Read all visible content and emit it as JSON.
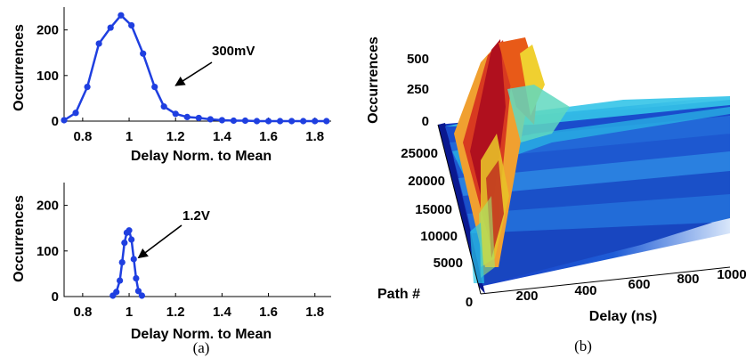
{
  "chart_data": [
    {
      "type": "line",
      "panel": "top-left",
      "xlabel": "Delay Norm. to Mean",
      "ylabel": "Occurrences",
      "xlim": [
        0.72,
        1.87
      ],
      "ylim": [
        0,
        250
      ],
      "xticks": [
        "0.8",
        "1",
        "1.2",
        "1.4",
        "1.6",
        "1.8"
      ],
      "xtick_values": [
        0.8,
        1.0,
        1.2,
        1.4,
        1.6,
        1.8
      ],
      "yticks": [
        "0",
        "100",
        "200"
      ],
      "ytick_values": [
        0,
        100,
        200
      ],
      "annotation": "300mV",
      "annotation_target": [
        1.2,
        78
      ],
      "color": "#1f3fe0",
      "x": [
        0.72,
        0.77,
        0.82,
        0.87,
        0.92,
        0.965,
        1.01,
        1.06,
        1.11,
        1.15,
        1.2,
        1.25,
        1.3,
        1.35,
        1.4,
        1.45,
        1.5,
        1.55,
        1.6,
        1.65,
        1.7,
        1.75,
        1.8,
        1.85
      ],
      "y": [
        2,
        18,
        75,
        170,
        205,
        232,
        210,
        148,
        75,
        32,
        16,
        9,
        7,
        4,
        2,
        1,
        1,
        0,
        0,
        0,
        0,
        0,
        0,
        0
      ]
    },
    {
      "type": "line",
      "panel": "bottom-left",
      "xlabel": "Delay Norm. to Mean",
      "ylabel": "Occurrences",
      "xlim": [
        0.72,
        1.87
      ],
      "ylim": [
        0,
        250
      ],
      "xticks": [
        "0.8",
        "1",
        "1.2",
        "1.4",
        "1.6",
        "1.8"
      ],
      "xtick_values": [
        0.8,
        1.0,
        1.2,
        1.4,
        1.6,
        1.8
      ],
      "yticks": [
        "0",
        "100",
        "200"
      ],
      "ytick_values": [
        0,
        100,
        200
      ],
      "annotation": "1.2V",
      "annotation_target": [
        1.04,
        85
      ],
      "color": "#1f3fe0",
      "x": [
        0.93,
        0.945,
        0.96,
        0.97,
        0.98,
        0.99,
        1.0,
        1.01,
        1.02,
        1.03,
        1.04,
        1.055
      ],
      "y": [
        2,
        10,
        35,
        75,
        118,
        140,
        145,
        125,
        82,
        40,
        12,
        2
      ]
    },
    {
      "type": "surface",
      "panel": "right",
      "xlabel": "Delay (ns)",
      "ylabel": "Path #",
      "zlabel": "Occurrences",
      "xticks": [
        "0",
        "200",
        "400",
        "600",
        "800",
        "1000"
      ],
      "yticks": [
        "5000",
        "10000",
        "15000",
        "20000",
        "25000"
      ],
      "zticks": [
        "0",
        "250",
        "500"
      ],
      "colormap": [
        "#0a1a9e",
        "#1a6ee0",
        "#2ac8e8",
        "#9ee870",
        "#f0d030",
        "#e86020",
        "#b0101e"
      ]
    }
  ],
  "captions": [
    "(a)",
    "(b)"
  ]
}
